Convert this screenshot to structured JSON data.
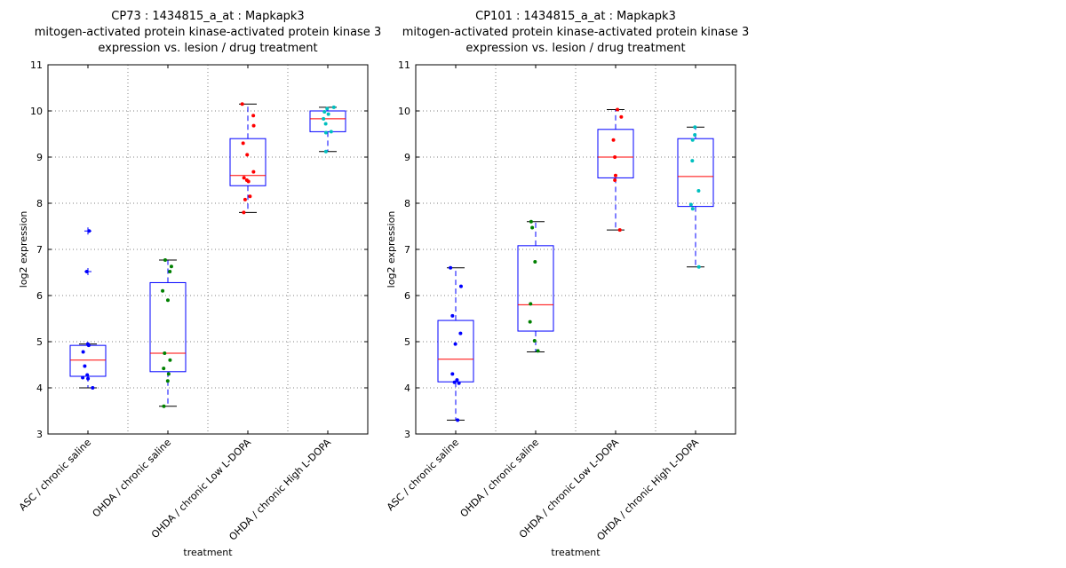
{
  "chart_data": [
    {
      "type": "box",
      "title_lines": [
        "CP73 : 1434815_a_at : Mapkapk3",
        "mitogen-activated protein kinase-activated protein kinase 3",
        "expression vs. lesion / drug treatment"
      ],
      "xlabel": "treatment",
      "ylabel": "log2 expression",
      "ylim": [
        3,
        11
      ],
      "yticks": [
        "3",
        "4",
        "5",
        "6",
        "7",
        "8",
        "9",
        "10",
        "11"
      ],
      "grid": true,
      "categories": [
        "ASC / chronic saline",
        "OHDA / chronic saline",
        "OHDA / chronic Low L-DOPA",
        "OHDA / chronic High L-DOPA"
      ],
      "boxes": [
        {
          "q1": 4.25,
          "median": 4.6,
          "q3": 4.92,
          "whisker_low": 4.0,
          "whisker_high": 4.95,
          "outliers": [
            7.4,
            6.52
          ],
          "points": [
            4.95,
            4.92,
            4.78,
            4.47,
            4.28,
            4.2,
            4.22,
            4.0
          ],
          "color": "#0000ff"
        },
        {
          "q1": 4.35,
          "median": 4.75,
          "q3": 6.28,
          "whisker_low": 3.6,
          "whisker_high": 6.77,
          "outliers": [],
          "points": [
            6.77,
            6.63,
            6.52,
            6.1,
            5.9,
            4.75,
            4.6,
            4.42,
            4.3,
            4.15,
            3.6
          ],
          "color": "#008000"
        },
        {
          "q1": 8.38,
          "median": 8.6,
          "q3": 9.4,
          "whisker_low": 7.8,
          "whisker_high": 10.15,
          "outliers": [],
          "points": [
            10.15,
            9.9,
            9.68,
            9.3,
            9.05,
            8.68,
            8.55,
            8.5,
            8.47,
            8.15,
            8.08,
            7.8
          ],
          "color": "#ff0000"
        },
        {
          "q1": 9.55,
          "median": 9.83,
          "q3": 10.0,
          "whisker_low": 9.12,
          "whisker_high": 10.08,
          "outliers": [],
          "points": [
            10.08,
            10.05,
            9.98,
            9.93,
            9.72,
            9.83,
            9.55,
            9.53,
            9.12
          ],
          "color": "#00bfbf"
        }
      ]
    },
    {
      "type": "box",
      "title_lines": [
        "CP101 : 1434815_a_at : Mapkapk3",
        "mitogen-activated protein kinase-activated protein kinase 3",
        "expression vs. lesion / drug treatment"
      ],
      "xlabel": "treatment",
      "ylabel": "log2 expression",
      "ylim": [
        3,
        11
      ],
      "yticks": [
        "3",
        "4",
        "5",
        "6",
        "7",
        "8",
        "9",
        "10",
        "11"
      ],
      "grid": true,
      "categories": [
        "ASC / chronic saline",
        "OHDA / chronic saline",
        "OHDA / chronic Low L-DOPA",
        "OHDA / chronic High L-DOPA"
      ],
      "boxes": [
        {
          "q1": 4.13,
          "median": 4.62,
          "q3": 5.46,
          "whisker_low": 3.3,
          "whisker_high": 6.6,
          "outliers": [],
          "points": [
            6.6,
            6.2,
            5.56,
            5.18,
            4.95,
            4.3,
            4.17,
            4.12,
            4.1,
            3.3
          ],
          "color": "#0000ff"
        },
        {
          "q1": 5.23,
          "median": 5.8,
          "q3": 7.08,
          "whisker_low": 4.78,
          "whisker_high": 7.6,
          "outliers": [],
          "points": [
            7.6,
            7.47,
            6.73,
            5.82,
            5.43,
            5.02,
            4.8
          ],
          "color": "#008000"
        },
        {
          "q1": 8.55,
          "median": 9.0,
          "q3": 9.6,
          "whisker_low": 7.42,
          "whisker_high": 10.03,
          "outliers": [],
          "points": [
            10.03,
            9.87,
            9.37,
            9.0,
            8.6,
            8.5,
            7.42
          ],
          "color": "#ff0000"
        },
        {
          "q1": 7.93,
          "median": 8.58,
          "q3": 9.4,
          "whisker_low": 6.62,
          "whisker_high": 9.65,
          "outliers": [],
          "points": [
            9.65,
            9.48,
            9.37,
            8.92,
            8.27,
            7.97,
            7.88,
            6.62
          ],
          "color": "#00bfbf"
        }
      ]
    }
  ]
}
